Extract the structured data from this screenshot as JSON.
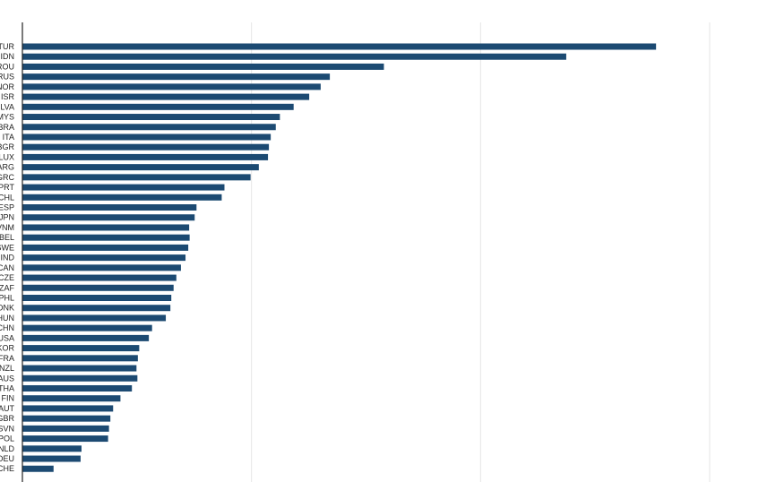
{
  "chart_data": {
    "type": "bar",
    "orientation": "horizontal",
    "categories": [
      "TUR",
      "IDN",
      "ROU",
      "RUS",
      "NOR",
      "ISR",
      "LVA",
      "MYS",
      "BRA",
      "ITA",
      "BGR",
      "LUX",
      "ARG",
      "GRC",
      "PRT",
      "CHL",
      "ESP",
      "JPN",
      "VNM",
      "BEL",
      "SWE",
      "IND",
      "CAN",
      "CZE",
      "ZAF",
      "PHL",
      "DNK",
      "HUN",
      "CHN",
      "USA",
      "KOR",
      "FRA",
      "NZL",
      "AUS",
      "THA",
      "FIN",
      "AUT",
      "GBR",
      "SVN",
      "POL",
      "NLD",
      "DEU",
      "CHE"
    ],
    "values": [
      138.3,
      118.7,
      78.9,
      67.1,
      65.1,
      62.6,
      59.2,
      56.2,
      55.3,
      54.2,
      53.8,
      53.6,
      51.6,
      49.8,
      44.1,
      43.5,
      38.0,
      37.6,
      36.4,
      36.5,
      36.2,
      35.6,
      34.6,
      33.6,
      33.0,
      32.5,
      32.3,
      31.3,
      28.3,
      27.6,
      25.5,
      25.2,
      24.9,
      25.1,
      23.9,
      21.4,
      19.8,
      19.2,
      18.9,
      18.7,
      12.9,
      12.7,
      6.8
    ],
    "xlim": [
      0,
      150
    ],
    "xticks": [
      0,
      50,
      100,
      150
    ],
    "grid": true,
    "title": "",
    "xlabel": "",
    "ylabel": "",
    "colors": {
      "bar": "#1c4a72",
      "grid": "#e6e6e6",
      "axis": "#222222"
    }
  }
}
